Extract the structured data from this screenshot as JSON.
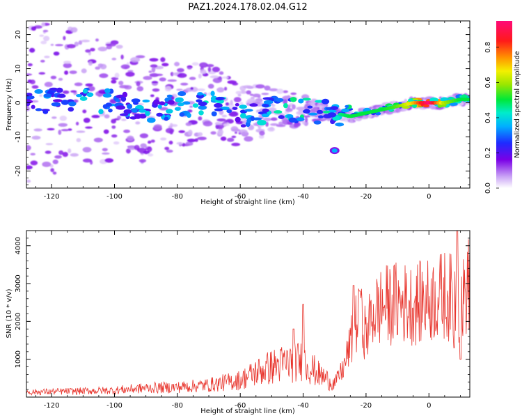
{
  "title": "PAZ1.2024.178.02.04.G12",
  "chart_data": [
    {
      "type": "heatmap",
      "xlabel": "Height of straight line (km)",
      "ylabel": "Frequency (Hz)",
      "xlim": [
        -128,
        13
      ],
      "ylim": [
        -25,
        24
      ],
      "xticks": [
        -120,
        -100,
        -80,
        -60,
        -40,
        -20,
        0
      ],
      "yticks": [
        -20,
        -10,
        0,
        10,
        20
      ],
      "colorbar": {
        "label": "Normalized spectral amplitude",
        "ticks": [
          0.0,
          0.2,
          0.4,
          0.6,
          0.8
        ],
        "range": [
          0,
          0.95
        ],
        "colormap": "rainbow (white to purple to blue to cyan to green to yellow to orange to red to pink)"
      },
      "ridge": {
        "description": "approximate frequency of the strongest signal versus height",
        "x": [
          -128,
          -110,
          -100,
          -90,
          -80,
          -70,
          -60,
          -50,
          -40,
          -30,
          -25,
          -20,
          -15,
          -10,
          -5,
          0,
          5,
          10,
          13
        ],
        "y": [
          0,
          2,
          0,
          -2,
          -1,
          1,
          -4,
          -2,
          -2,
          -3,
          -4,
          -3,
          -2,
          -1,
          0,
          0,
          0,
          1,
          1
        ],
        "amplitude": [
          0.3,
          0.45,
          0.4,
          0.4,
          0.4,
          0.45,
          0.4,
          0.45,
          0.5,
          0.45,
          0.5,
          0.5,
          0.5,
          0.55,
          0.7,
          0.95,
          0.6,
          0.5,
          0.5
        ]
      },
      "features": [
        {
          "x": -30,
          "y": -14,
          "amplitude": 0.35
        }
      ]
    },
    {
      "type": "line",
      "xlabel": "Height of straight line (km)",
      "ylabel": "SNR (10 * v/v)",
      "xlim": [
        -128,
        13
      ],
      "ylim": [
        0,
        4400
      ],
      "xticks": [
        -120,
        -100,
        -80,
        -60,
        -40,
        -20,
        0
      ],
      "yticks": [
        1000,
        2000,
        3000,
        4000
      ],
      "color": "#e8342c",
      "envelope": {
        "x": [
          -128,
          -110,
          -100,
          -90,
          -80,
          -70,
          -60,
          -55,
          -50,
          -45,
          -40,
          -35,
          -30,
          -27,
          -25,
          -23,
          -21,
          -20,
          -18,
          -15,
          -10,
          -5,
          0,
          5,
          8,
          9,
          10,
          12,
          13
        ],
        "y": [
          130,
          160,
          180,
          240,
          260,
          320,
          450,
          650,
          800,
          900,
          950,
          600,
          350,
          800,
          1400,
          2000,
          2000,
          1600,
          2200,
          2400,
          2500,
          2450,
          2550,
          2700,
          2600,
          2800,
          2300,
          2900,
          3000
        ]
      },
      "spikes": [
        {
          "x": -43,
          "y": 1800
        },
        {
          "x": -40,
          "y": 2450
        },
        {
          "x": -24,
          "y": 2950
        },
        {
          "x": -22,
          "y": 2800
        },
        {
          "x": 9,
          "y": 4400
        },
        {
          "x": 8,
          "y": 1300
        },
        {
          "x": 10,
          "y": 1000
        }
      ]
    }
  ]
}
